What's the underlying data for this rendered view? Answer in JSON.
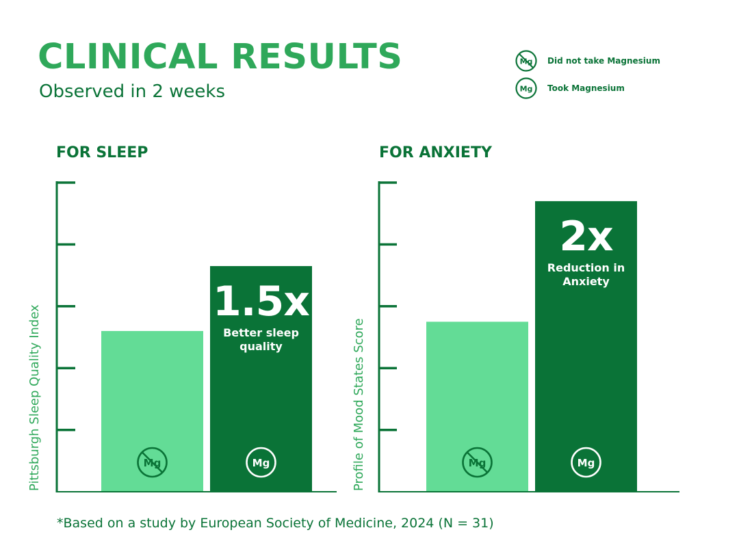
{
  "header": {
    "title": "CLINICAL RESULTS",
    "subtitle": "Observed in 2 weeks"
  },
  "legend": {
    "items": [
      {
        "icon": "no-magnesium-icon",
        "icon_text": "Mg",
        "crossed": true,
        "label": "Did not take Magnesium"
      },
      {
        "icon": "magnesium-icon",
        "icon_text": "Mg",
        "crossed": false,
        "label": "Took Magnesium"
      }
    ]
  },
  "colors": {
    "light_green": "#63dc96",
    "dark_green": "#0a7337",
    "title_green": "#2fa85a",
    "axis": "#0a7337"
  },
  "chart_data": [
    {
      "type": "bar",
      "title": "FOR SLEEP",
      "ylabel": "Pittsburgh Sleep Quality Index",
      "ylim": [
        0,
        5
      ],
      "ytick_count": 5,
      "grid": false,
      "categories": [
        "Did not take Magnesium",
        "Took Magnesium"
      ],
      "values": [
        2.6,
        3.65
      ],
      "bar_colors": [
        "#63dc96",
        "#0a7337"
      ],
      "icon_text": "Mg",
      "annotation": {
        "bar_index": 1,
        "value_text": "1.5x",
        "text": "Better sleep quality"
      }
    },
    {
      "type": "bar",
      "title": "FOR ANXIETY",
      "ylabel": "Profile of Mood States Score",
      "ylim": [
        0,
        5
      ],
      "ytick_count": 5,
      "grid": false,
      "categories": [
        "Did not take Magnesium",
        "Took Magnesium"
      ],
      "values": [
        2.75,
        4.7
      ],
      "bar_colors": [
        "#63dc96",
        "#0a7337"
      ],
      "icon_text": "Mg",
      "annotation": {
        "bar_index": 1,
        "value_text": "2x",
        "text": "Reduction in Anxiety"
      }
    }
  ],
  "footnote": "*Based on a study by European Society of Medicine, 2024 (N = 31)"
}
